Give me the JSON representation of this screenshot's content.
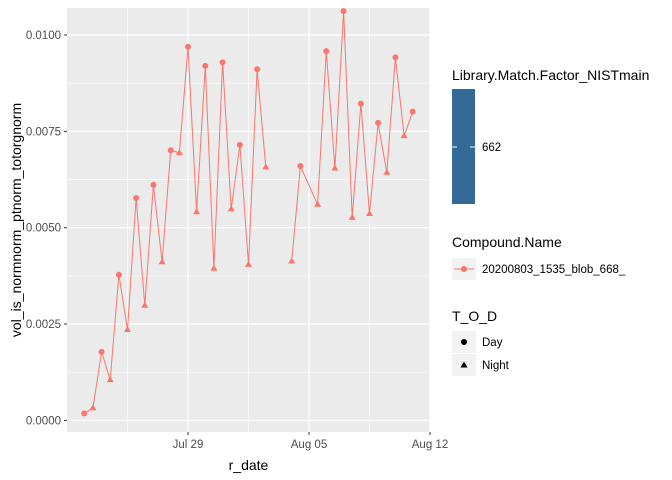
{
  "chart_data": {
    "type": "line",
    "xlabel": "r_date",
    "ylabel": "vol_is_normnorm_ptnorm_totorgnorm",
    "x_tick_labels": [
      "Jul 29",
      "Aug 05",
      "Aug 12"
    ],
    "x_tick_values": [
      "2020-07-29",
      "2020-08-05",
      "2020-08-12"
    ],
    "y_tick_labels": [
      "0.0000",
      "0.0025",
      "0.0050",
      "0.0075",
      "0.0100"
    ],
    "y_tick_values": [
      0,
      0.0025,
      0.005,
      0.0075,
      0.01
    ],
    "xlim": [
      "2020-07-22",
      "2020-08-12"
    ],
    "ylim": [
      -0.0003,
      0.0107
    ],
    "grid": true,
    "background": "#ebebeb",
    "series_color": "#f8766d",
    "points": [
      {
        "x": "2020-07-23T00:00",
        "y": 0.00018,
        "tod": "Day"
      },
      {
        "x": "2020-07-23T12:00",
        "y": 0.00032,
        "tod": "Night"
      },
      {
        "x": "2020-07-24T00:00",
        "y": 0.00178,
        "tod": "Day"
      },
      {
        "x": "2020-07-24T12:00",
        "y": 0.00105,
        "tod": "Night"
      },
      {
        "x": "2020-07-25T00:00",
        "y": 0.00378,
        "tod": "Day"
      },
      {
        "x": "2020-07-25T12:00",
        "y": 0.00235,
        "tod": "Night"
      },
      {
        "x": "2020-07-26T00:00",
        "y": 0.00577,
        "tod": "Day"
      },
      {
        "x": "2020-07-26T12:00",
        "y": 0.00298,
        "tod": "Night"
      },
      {
        "x": "2020-07-27T00:00",
        "y": 0.00611,
        "tod": "Day"
      },
      {
        "x": "2020-07-27T12:00",
        "y": 0.00411,
        "tod": "Night"
      },
      {
        "x": "2020-07-28T00:00",
        "y": 0.00701,
        "tod": "Day"
      },
      {
        "x": "2020-07-28T12:00",
        "y": 0.00694,
        "tod": "Night"
      },
      {
        "x": "2020-07-29T00:00",
        "y": 0.00969,
        "tod": "Day"
      },
      {
        "x": "2020-07-29T12:00",
        "y": 0.00541,
        "tod": "Night"
      },
      {
        "x": "2020-07-30T00:00",
        "y": 0.0092,
        "tod": "Day"
      },
      {
        "x": "2020-07-30T12:00",
        "y": 0.00394,
        "tod": "Night"
      },
      {
        "x": "2020-07-31T00:00",
        "y": 0.00929,
        "tod": "Day"
      },
      {
        "x": "2020-07-31T12:00",
        "y": 0.00548,
        "tod": "Night"
      },
      {
        "x": "2020-08-01T00:00",
        "y": 0.00715,
        "tod": "Day"
      },
      {
        "x": "2020-08-01T12:00",
        "y": 0.00404,
        "tod": "Night"
      },
      {
        "x": "2020-08-02T00:00",
        "y": 0.00911,
        "tod": "Day"
      },
      {
        "x": "2020-08-02T12:00",
        "y": 0.00657,
        "tod": "Night"
      },
      {
        "x": "2020-08-04T00:00",
        "y": 0.00413,
        "tod": "Night",
        "gap_before": true
      },
      {
        "x": "2020-08-04T12:00",
        "y": 0.0066,
        "tod": "Day"
      },
      {
        "x": "2020-08-05T12:00",
        "y": 0.0056,
        "tod": "Night"
      },
      {
        "x": "2020-08-06T00:00",
        "y": 0.00958,
        "tod": "Day"
      },
      {
        "x": "2020-08-06T12:00",
        "y": 0.00654,
        "tod": "Night"
      },
      {
        "x": "2020-08-07T00:00",
        "y": 0.01062,
        "tod": "Day"
      },
      {
        "x": "2020-08-07T12:00",
        "y": 0.00526,
        "tod": "Night"
      },
      {
        "x": "2020-08-08T00:00",
        "y": 0.00822,
        "tod": "Day"
      },
      {
        "x": "2020-08-08T12:00",
        "y": 0.00536,
        "tod": "Night"
      },
      {
        "x": "2020-08-09T00:00",
        "y": 0.00772,
        "tod": "Day"
      },
      {
        "x": "2020-08-09T12:00",
        "y": 0.00643,
        "tod": "Night"
      },
      {
        "x": "2020-08-10T00:00",
        "y": 0.00942,
        "tod": "Day"
      },
      {
        "x": "2020-08-10T12:00",
        "y": 0.00738,
        "tod": "Night"
      },
      {
        "x": "2020-08-11T00:00",
        "y": 0.00801,
        "tod": "Day"
      }
    ],
    "legends": {
      "color_bar": {
        "title": "Library.Match.Factor_NISTmain",
        "label": "662",
        "color": "#336a98"
      },
      "compound": {
        "title": "Compound.Name",
        "label": "20200803_1535_blob_668_"
      },
      "tod": {
        "title": "T_O_D",
        "labels": [
          "Day",
          "Night"
        ]
      }
    }
  }
}
